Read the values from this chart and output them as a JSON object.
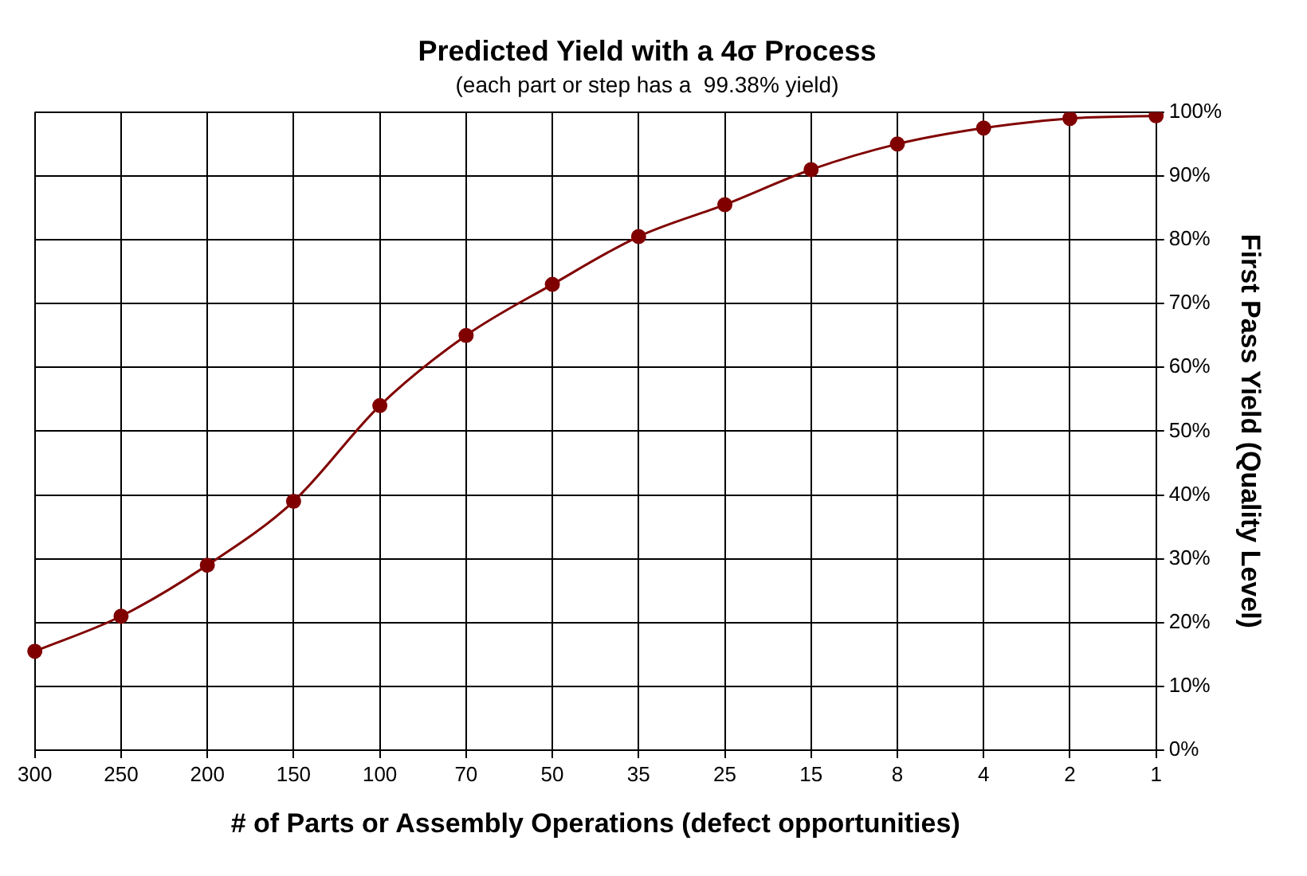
{
  "chart_data": {
    "type": "line",
    "title": "Predicted Yield with a 4σ Process",
    "subtitle": "(each part or step has a  99.38% yield)",
    "xlabel": "# of Parts or Assembly Operations (defect opportunities)",
    "ylabel": "First Pass Yield (Quality Level)",
    "categories": [
      "300",
      "250",
      "200",
      "150",
      "100",
      "70",
      "50",
      "35",
      "25",
      "15",
      "8",
      "4",
      "2",
      "1"
    ],
    "series": [
      {
        "color": "#800000",
        "values": [
          15.5,
          21,
          29,
          39,
          54,
          65,
          73,
          80.5,
          85.5,
          91,
          95,
          97.5,
          99,
          99.4
        ]
      }
    ],
    "ylim": [
      0,
      100
    ],
    "yticks": [
      {
        "value": 0,
        "label": "0%"
      },
      {
        "value": 10,
        "label": "10%"
      },
      {
        "value": 20,
        "label": "20%"
      },
      {
        "value": 30,
        "label": "30%"
      },
      {
        "value": 40,
        "label": "40%"
      },
      {
        "value": 50,
        "label": "50%"
      },
      {
        "value": 60,
        "label": "60%"
      },
      {
        "value": 70,
        "label": "70%"
      },
      {
        "value": 80,
        "label": "80%"
      },
      {
        "value": 90,
        "label": "90%"
      },
      {
        "value": 100,
        "label": "100%"
      }
    ],
    "grid": true,
    "marker": "circle",
    "line_style": "solid"
  }
}
